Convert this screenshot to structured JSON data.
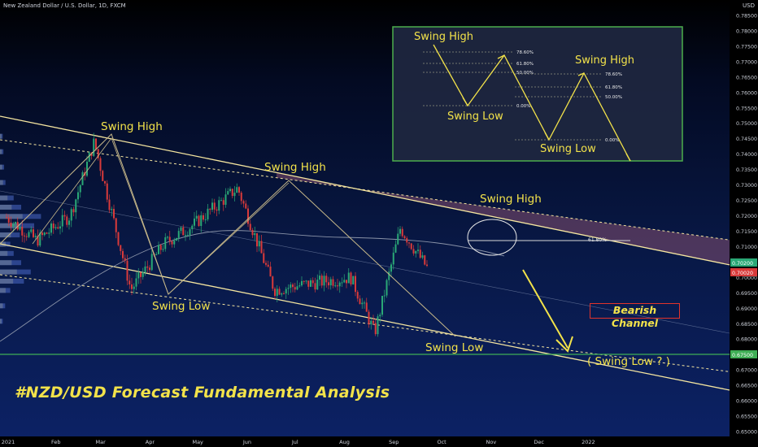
{
  "header": {
    "symbol_title": "New Zealand Dollar / U.S. Dollar, 1D, FXCM",
    "currency": "USD"
  },
  "colors": {
    "up": "#2aa876",
    "down": "#d93a3a",
    "channel": "#f5e6a0",
    "annot": "#f2e24a",
    "accent_green": "#3fae55"
  },
  "chart_data": {
    "type": "candlestick",
    "title": "New Zealand Dollar / U.S. Dollar, 1D, FXCM",
    "ylabel": "USD",
    "ylim": [
      0.645,
      0.79
    ],
    "y_ticks": [
      0.785,
      0.78,
      0.775,
      0.77,
      0.765,
      0.76,
      0.755,
      0.75,
      0.745,
      0.74,
      0.735,
      0.73,
      0.725,
      0.72,
      0.715,
      0.71,
      0.705,
      0.7,
      0.695,
      0.69,
      0.685,
      0.68,
      0.675,
      0.67,
      0.665,
      0.66,
      0.655,
      0.65
    ],
    "x_ticks": [
      "2021",
      "Feb",
      "Mar",
      "Apr",
      "May",
      "Jun",
      "Jul",
      "Aug",
      "Sep",
      "Oct",
      "Nov",
      "Dec",
      "2022"
    ],
    "close_waypoints": [
      {
        "date": "2021-01-01",
        "price": 0.7195
      },
      {
        "date": "2021-01-20",
        "price": 0.712
      },
      {
        "date": "2021-02-10",
        "price": 0.72
      },
      {
        "date": "2021-02-25",
        "price": 0.744
      },
      {
        "date": "2021-03-20",
        "price": 0.696
      },
      {
        "date": "2021-04-10",
        "price": 0.711
      },
      {
        "date": "2021-04-28",
        "price": 0.717
      },
      {
        "date": "2021-05-26",
        "price": 0.729
      },
      {
        "date": "2021-06-18",
        "price": 0.696
      },
      {
        "date": "2021-07-10",
        "price": 0.698
      },
      {
        "date": "2021-08-05",
        "price": 0.7
      },
      {
        "date": "2021-08-20",
        "price": 0.682
      },
      {
        "date": "2021-09-05",
        "price": 0.716
      },
      {
        "date": "2021-09-22",
        "price": 0.703
      }
    ],
    "annotations": [
      "Swing High",
      "Swing Low",
      "Swing High",
      "Swing Low",
      "Swing High",
      "Swing Low",
      "( Swing Low ? )"
    ],
    "fib_label": "61.80%",
    "price_tags": {
      "current": "0.70200",
      "previous": "0.70020",
      "support": "0.67500"
    }
  },
  "inset": {
    "labels": [
      "Swing High",
      "Swing Low",
      "Swing High",
      "Swing Low"
    ],
    "fibs_left": [
      "78.60%",
      "61.80%",
      "50.00%",
      "0.00%"
    ],
    "fibs_right": [
      "78.60%",
      "61.80%",
      "50.00%",
      "0.00%"
    ]
  },
  "main_labels": {
    "title": "#NZD/USD Forecast Fundamental Analysis",
    "bearish": "Bearish Channel"
  }
}
